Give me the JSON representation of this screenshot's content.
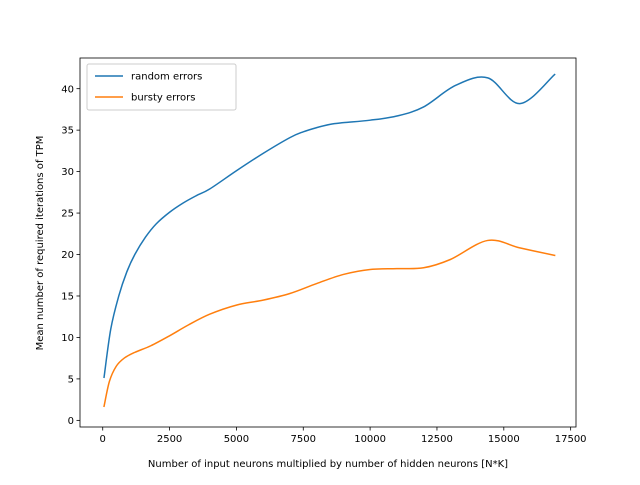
{
  "chart_data": {
    "type": "line",
    "title": "",
    "xlabel": "Number of input neurons multiplied by number of hidden neurons [N*K]",
    "ylabel": "Mean number of required iterations of TPM",
    "xlim": [
      -850,
      17700
    ],
    "ylim": [
      -0.8,
      43.7
    ],
    "xticks": [
      0,
      2500,
      5000,
      7500,
      10000,
      12500,
      15000,
      17500
    ],
    "yticks": [
      0,
      5,
      10,
      15,
      20,
      25,
      30,
      35,
      40
    ],
    "grid": false,
    "legend": "upper-left",
    "series": [
      {
        "name": "random errors",
        "color": "#1f77b4",
        "x": [
          50,
          300,
          600,
          900,
          1200,
          1600,
          2000,
          2500,
          3000,
          3500,
          4000,
          5000,
          6000,
          7000,
          7500,
          8000,
          8500,
          9000,
          10000,
          11000,
          12000,
          13200,
          14400,
          15600,
          16900
        ],
        "y": [
          5.2,
          11.0,
          15.0,
          17.9,
          20.0,
          22.1,
          23.7,
          25.1,
          26.2,
          27.1,
          27.9,
          30.1,
          32.2,
          34.1,
          34.8,
          35.3,
          35.7,
          35.9,
          36.2,
          36.7,
          37.8,
          40.4,
          41.3,
          38.2,
          41.7
        ]
      },
      {
        "name": "bursty errors",
        "color": "#ff7f0e",
        "x": [
          50,
          250,
          500,
          800,
          1200,
          1800,
          2500,
          3200,
          4000,
          5000,
          6000,
          7000,
          8000,
          9000,
          10000,
          11000,
          12000,
          13000,
          14400,
          15600,
          16900
        ],
        "y": [
          1.7,
          4.7,
          6.5,
          7.5,
          8.2,
          9.0,
          10.2,
          11.5,
          12.8,
          13.9,
          14.5,
          15.3,
          16.5,
          17.6,
          18.2,
          18.3,
          18.4,
          19.4,
          21.7,
          20.8,
          19.9
        ]
      }
    ]
  }
}
